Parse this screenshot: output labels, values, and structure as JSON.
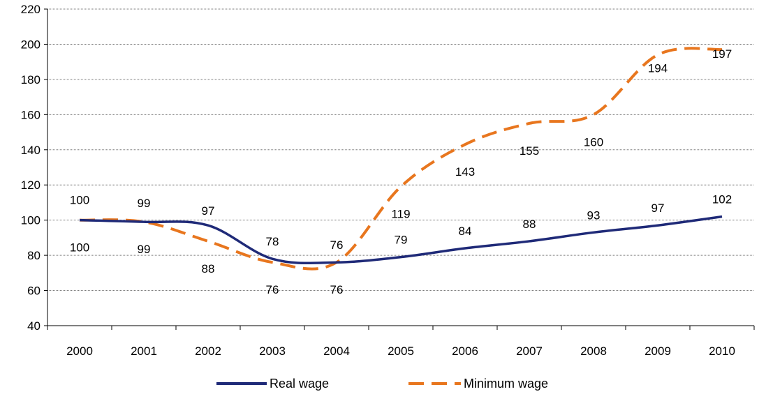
{
  "chart_data": {
    "type": "line",
    "title": "",
    "xlabel": "",
    "ylabel": "",
    "categories": [
      "2000",
      "2001",
      "2002",
      "2003",
      "2004",
      "2005",
      "2006",
      "2007",
      "2008",
      "2009",
      "2010"
    ],
    "ylim": [
      40,
      220
    ],
    "yticks": [
      "40",
      "60",
      "80",
      "100",
      "120",
      "140",
      "160",
      "180",
      "200",
      "220"
    ],
    "grid": "horizontal",
    "legend_position": "bottom",
    "series": [
      {
        "name": "Real wage",
        "color": "#1f2a78",
        "style": "solid",
        "values": [
          100,
          99,
          97,
          78,
          76,
          79,
          84,
          88,
          93,
          97,
          102
        ],
        "labels": [
          "100",
          "99",
          "97",
          "78",
          "76",
          "79",
          "84",
          "88",
          "93",
          "97",
          "102"
        ]
      },
      {
        "name": "Minimum wage",
        "color": "#e8761e",
        "style": "dashed",
        "values": [
          100,
          99,
          88,
          76,
          76,
          119,
          143,
          155,
          160,
          194,
          197
        ],
        "labels": [
          "100",
          "99",
          "88",
          "76",
          "76",
          "119",
          "143",
          "155",
          "160",
          "194",
          "197"
        ]
      }
    ]
  }
}
